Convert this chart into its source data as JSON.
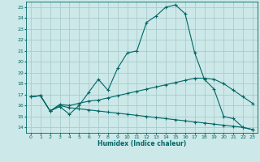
{
  "xlabel": "Humidex (Indice chaleur)",
  "bg_color": "#cce8e8",
  "line_color": "#006666",
  "grid_color": "#aacccc",
  "xlim": [
    -0.5,
    23.5
  ],
  "ylim": [
    13.5,
    25.5
  ],
  "xticks": [
    0,
    1,
    2,
    3,
    4,
    5,
    6,
    7,
    8,
    9,
    10,
    11,
    12,
    13,
    14,
    15,
    16,
    17,
    18,
    19,
    20,
    21,
    22,
    23
  ],
  "yticks": [
    14,
    15,
    16,
    17,
    18,
    19,
    20,
    21,
    22,
    23,
    24,
    25
  ],
  "line1_x": [
    0,
    1,
    2,
    3,
    4,
    5,
    6,
    7,
    8,
    9,
    10,
    11,
    12,
    13,
    14,
    15,
    16,
    17,
    18,
    19,
    20,
    21,
    22,
    23
  ],
  "line1_y": [
    16.8,
    16.9,
    15.5,
    15.9,
    15.2,
    16.0,
    17.2,
    18.4,
    17.4,
    19.4,
    20.8,
    21.0,
    23.6,
    24.2,
    25.0,
    25.2,
    24.4,
    20.8,
    18.4,
    17.5,
    15.0,
    14.8,
    14.0,
    13.8
  ],
  "line2_x": [
    0,
    1,
    2,
    3,
    4,
    5,
    6,
    7,
    8,
    9,
    10,
    11,
    12,
    13,
    14,
    15,
    16,
    17,
    18,
    19,
    20,
    21,
    22,
    23
  ],
  "line2_y": [
    16.8,
    16.9,
    15.5,
    16.1,
    16.0,
    16.2,
    16.4,
    16.5,
    16.7,
    16.9,
    17.1,
    17.3,
    17.5,
    17.7,
    17.9,
    18.1,
    18.3,
    18.5,
    18.5,
    18.4,
    18.0,
    17.4,
    16.8,
    16.2
  ],
  "line3_x": [
    0,
    1,
    2,
    3,
    4,
    5,
    6,
    7,
    8,
    9,
    10,
    11,
    12,
    13,
    14,
    15,
    16,
    17,
    18,
    19,
    20,
    21,
    22,
    23
  ],
  "line3_y": [
    16.8,
    16.9,
    15.5,
    16.0,
    15.8,
    15.7,
    15.6,
    15.5,
    15.4,
    15.3,
    15.2,
    15.1,
    15.0,
    14.9,
    14.8,
    14.7,
    14.6,
    14.5,
    14.4,
    14.3,
    14.2,
    14.1,
    14.0,
    13.8
  ]
}
